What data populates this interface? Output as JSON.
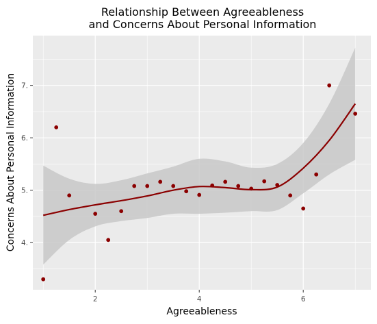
{
  "chart_data": {
    "type": "scatter",
    "title_lines": [
      "Relationship Between Agreeableness",
      "and Concerns About Personal Information"
    ],
    "xlabel": "Agreeableness",
    "ylabel": "Concerns About Personal Information",
    "xlim": [
      0.8,
      7.3
    ],
    "ylim": [
      3.1,
      7.95
    ],
    "x_ticks": [
      2,
      4,
      6
    ],
    "y_ticks": [
      4,
      5,
      6,
      7
    ],
    "x_tick_labels": [
      "2",
      "4",
      "6"
    ],
    "y_tick_labels": [
      "4.",
      "5.",
      "6.",
      "7."
    ],
    "grid": true,
    "colors": {
      "panel_background": "#ebebeb",
      "grid": "#ffffff",
      "points": "#8b0000",
      "smooth_line": "#8b0000",
      "confidence_band": "#c8c8c8"
    },
    "points": [
      {
        "x": 1.0,
        "y": 3.3
      },
      {
        "x": 1.25,
        "y": 6.2
      },
      {
        "x": 1.5,
        "y": 4.9
      },
      {
        "x": 2.0,
        "y": 4.55
      },
      {
        "x": 2.25,
        "y": 4.05
      },
      {
        "x": 2.5,
        "y": 4.6
      },
      {
        "x": 2.75,
        "y": 5.08
      },
      {
        "x": 3.0,
        "y": 5.08
      },
      {
        "x": 3.25,
        "y": 5.16
      },
      {
        "x": 3.5,
        "y": 5.08
      },
      {
        "x": 3.75,
        "y": 4.98
      },
      {
        "x": 4.0,
        "y": 4.91
      },
      {
        "x": 4.25,
        "y": 5.09
      },
      {
        "x": 4.5,
        "y": 5.16
      },
      {
        "x": 4.75,
        "y": 5.08
      },
      {
        "x": 5.0,
        "y": 5.03
      },
      {
        "x": 5.25,
        "y": 5.17
      },
      {
        "x": 5.5,
        "y": 5.1
      },
      {
        "x": 5.75,
        "y": 4.9
      },
      {
        "x": 6.0,
        "y": 4.65
      },
      {
        "x": 6.25,
        "y": 5.3
      },
      {
        "x": 6.5,
        "y": 7.0
      },
      {
        "x": 7.0,
        "y": 6.46
      }
    ],
    "smooth": {
      "x": [
        1.0,
        1.5,
        2.0,
        2.5,
        3.0,
        3.5,
        4.0,
        4.5,
        5.0,
        5.5,
        6.0,
        6.5,
        7.0
      ],
      "y": [
        4.52,
        4.63,
        4.72,
        4.8,
        4.89,
        5.0,
        5.07,
        5.05,
        5.01,
        5.06,
        5.42,
        5.95,
        6.65
      ],
      "upper": [
        5.47,
        5.22,
        5.12,
        5.19,
        5.32,
        5.45,
        5.6,
        5.55,
        5.43,
        5.5,
        5.9,
        6.65,
        7.72
      ],
      "lower": [
        3.58,
        4.05,
        4.31,
        4.41,
        4.47,
        4.55,
        4.55,
        4.57,
        4.6,
        4.62,
        4.94,
        5.3,
        5.58
      ]
    }
  }
}
